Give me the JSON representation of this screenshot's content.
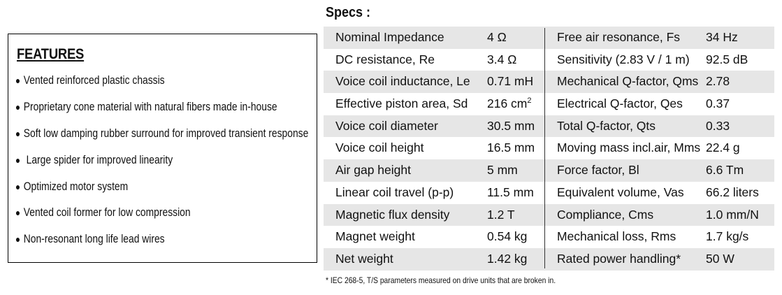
{
  "features": {
    "title": "FEATURES",
    "items": [
      "Vented reinforced plastic chassis",
      "Proprietary cone material with natural fibers made in-house",
      "Soft low damping rubber surround for improved transient response",
      " Large spider for improved linearity",
      "Optimized motor system",
      "Vented coil former for low compression",
      "Non-resonant long life lead wires"
    ]
  },
  "specs": {
    "title": "Specs :",
    "rows": [
      {
        "label": "Nominal Impedance",
        "value": "4 Ω",
        "label2": "Free air resonance, Fs",
        "value2": "34 Hz"
      },
      {
        "label": "DC resistance, Re",
        "value": "3.4 Ω",
        "label2": "Sensitivity (2.83 V / 1 m)",
        "value2": "92.5 dB"
      },
      {
        "label": "Voice coil inductance, Le",
        "value": "0.71 mH",
        "label2": "Mechanical Q-factor, Qms",
        "value2": "2.78"
      },
      {
        "label": "Effective piston area, Sd",
        "value": "216 cm",
        "value_sup": "2",
        "label2": "Electrical Q-factor, Qes",
        "value2": "0.37"
      },
      {
        "label": "Voice coil diameter",
        "value": "30.5 mm",
        "label2": "Total Q-factor, Qts",
        "value2": "0.33"
      },
      {
        "label": "Voice coil height",
        "value": "16.5 mm",
        "label2": "Moving mass incl.air, Mms",
        "value2": "22.4 g"
      },
      {
        "label": "Air gap height",
        "value": "5 mm",
        "label2": "Force factor,  Bl",
        "value2": "6.6 Tm"
      },
      {
        "label": "Linear coil travel (p-p)",
        "value": "11.5 mm",
        "label2": "Equivalent volume, Vas",
        "value2": "66.2 liters"
      },
      {
        "label": "Magnetic flux density",
        "value": "1.2 T",
        "label2": "Compliance, Cms",
        "value2": "1.0 mm/N"
      },
      {
        "label": "Magnet weight",
        "value": "0.54 kg",
        "label2": "Mechanical loss, Rms",
        "value2": "1.7 kg/s"
      },
      {
        "label": "Net weight",
        "value": "1.42 kg",
        "label2": "Rated power handling*",
        "value2": "50 W"
      }
    ],
    "footnote": "* IEC 268-5, T/S parameters measured on drive units that are broken in."
  }
}
